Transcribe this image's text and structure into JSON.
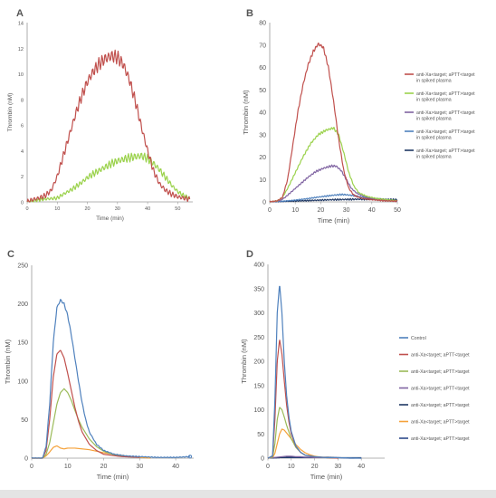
{
  "chart_data": [
    {
      "panel": "A",
      "type": "line",
      "xlabel": "Time (min)",
      "ylabel": "Thrombin (nM)",
      "xlim": [
        0,
        55
      ],
      "ylim": [
        0,
        14
      ],
      "xticks": [
        0,
        10,
        20,
        30,
        40,
        50
      ],
      "yticks": [
        0,
        2,
        4,
        6,
        8,
        10,
        12,
        14
      ],
      "series": [
        {
          "color": "#c0504d",
          "wiggle": 0.55,
          "x": [
            0,
            2,
            4,
            6,
            8,
            10,
            12,
            14,
            16,
            18,
            20,
            22,
            24,
            26,
            28,
            30,
            32,
            34,
            36,
            38,
            40,
            42,
            44,
            46,
            48,
            50,
            52,
            54
          ],
          "y": [
            0,
            0.2,
            0.3,
            0.5,
            0.9,
            2.0,
            3.6,
            5.2,
            6.8,
            8.2,
            9.4,
            10.2,
            10.8,
            11.2,
            11.4,
            11.3,
            10.7,
            9.5,
            7.8,
            5.8,
            4.0,
            2.4,
            1.4,
            0.9,
            0.6,
            0.4,
            0.3,
            0.2
          ]
        },
        {
          "color": "#9bd24c",
          "wiggle": 0.35,
          "x": [
            0,
            5,
            10,
            12,
            15,
            18,
            20,
            22,
            25,
            28,
            30,
            33,
            35,
            38,
            40,
            42,
            44,
            46,
            48,
            50,
            52,
            54
          ],
          "y": [
            0,
            0.2,
            0.3,
            0.6,
            1.0,
            1.5,
            1.9,
            2.2,
            2.6,
            3.0,
            3.2,
            3.4,
            3.5,
            3.6,
            3.4,
            3.0,
            2.5,
            1.9,
            1.3,
            0.8,
            0.5,
            0.3
          ]
        }
      ]
    },
    {
      "panel": "B",
      "type": "line",
      "xlabel": "Time (min)",
      "ylabel": "Thrombin (nM)",
      "xlim": [
        0,
        50
      ],
      "ylim": [
        0,
        80
      ],
      "xticks": [
        0,
        10,
        20,
        30,
        40,
        50
      ],
      "yticks": [
        0,
        10,
        20,
        30,
        40,
        50,
        60,
        70,
        80
      ],
      "legend": "right",
      "series": [
        {
          "name": "anti-Xa<target; aPTT<target in spiked plasma",
          "color": "#c0504d",
          "wiggle": 0.8,
          "x": [
            0,
            3,
            5,
            7,
            9,
            11,
            13,
            15,
            17,
            19,
            21,
            23,
            25,
            27,
            29,
            31,
            33,
            35,
            37,
            40,
            45,
            50
          ],
          "y": [
            0,
            0.5,
            2,
            10,
            25,
            40,
            52,
            61,
            67,
            70.5,
            69,
            60,
            45,
            28,
            14,
            6,
            3,
            2,
            1.5,
            1,
            0.5,
            0.3
          ]
        },
        {
          "name": "anti-Xa<target; aPTT>target in spiked plasma",
          "color": "#9bd24c",
          "wiggle": 0.6,
          "x": [
            0,
            3,
            5,
            7,
            10,
            13,
            16,
            19,
            22,
            25,
            27,
            29,
            31,
            33,
            35,
            38,
            42,
            46,
            50
          ],
          "y": [
            0,
            0.5,
            2,
            6,
            13,
            20,
            26,
            30,
            32,
            33,
            30,
            22,
            13,
            7,
            4,
            2.5,
            1.5,
            1,
            0.5
          ]
        },
        {
          "name": "anti-Xa>target; aPTT<target in spiked plasma",
          "color": "#8064a2",
          "wiggle": 0.5,
          "x": [
            0,
            4,
            6,
            9,
            12,
            15,
            18,
            21,
            24,
            26,
            28,
            30,
            32,
            34,
            37,
            40,
            45,
            50
          ],
          "y": [
            0,
            0.5,
            2,
            5,
            8,
            11,
            13.5,
            15,
            16,
            16,
            14,
            10,
            6,
            4,
            2.5,
            1.5,
            1,
            0.5
          ]
        },
        {
          "name": "anti-Xa>target; aPTT>target in spiked plasma",
          "color": "#4f81bd",
          "wiggle": 0.35,
          "x": [
            0,
            5,
            10,
            15,
            20,
            25,
            28,
            30,
            33,
            36,
            40,
            45,
            50
          ],
          "y": [
            0,
            0.3,
            0.8,
            1.5,
            2.3,
            3.0,
            3.3,
            3.2,
            2.8,
            2.2,
            1.5,
            0.8,
            0.4
          ]
        },
        {
          "name": "anti-Xa>target; aPTT>target in spiked plasma",
          "color": "#1f3864",
          "wiggle": 0.4,
          "x": [
            0,
            5,
            10,
            15,
            20,
            25,
            30,
            35,
            40,
            45,
            50
          ],
          "y": [
            0,
            0.2,
            0.4,
            0.6,
            0.8,
            1.0,
            1.1,
            1.2,
            1.2,
            1.1,
            1.0
          ]
        }
      ]
    },
    {
      "panel": "C",
      "type": "line",
      "xlabel": "Time (min)",
      "ylabel": "Thrombin (nM)",
      "xlim": [
        0,
        45
      ],
      "ylim": [
        0,
        250
      ],
      "xticks": [
        0,
        10,
        20,
        30,
        40
      ],
      "yticks": [
        0,
        50,
        100,
        150,
        200,
        250
      ],
      "series": [
        {
          "color": "#4f81bd",
          "wiggle": 1.5,
          "x": [
            0,
            3,
            4,
            5,
            6,
            7,
            8,
            9,
            10,
            11,
            12,
            13,
            14,
            15,
            16,
            18,
            20,
            23,
            26,
            30,
            35,
            40,
            44
          ],
          "y": [
            0,
            0,
            15,
            70,
            150,
            195,
            205,
            200,
            185,
            160,
            130,
            100,
            72,
            50,
            34,
            18,
            10,
            5,
            3,
            2,
            1,
            1,
            2
          ]
        },
        {
          "color": "#c0504d",
          "wiggle": 0,
          "x": [
            0,
            3,
            4,
            5,
            6,
            7,
            8,
            9,
            10,
            11,
            12,
            13,
            14,
            16,
            18,
            20,
            25,
            30
          ],
          "y": [
            0,
            0,
            10,
            50,
            105,
            135,
            140,
            130,
            110,
            88,
            66,
            48,
            34,
            18,
            10,
            5,
            2,
            1
          ]
        },
        {
          "color": "#9bbb59",
          "wiggle": 0,
          "x": [
            0,
            3,
            4,
            5,
            6,
            7,
            8,
            9,
            10,
            11,
            12,
            13,
            14,
            16,
            18,
            20,
            23,
            26,
            30
          ],
          "y": [
            0,
            0,
            5,
            20,
            45,
            70,
            85,
            90,
            85,
            75,
            62,
            50,
            40,
            25,
            15,
            9,
            4,
            2,
            1
          ]
        },
        {
          "color": "#f5a23a",
          "wiggle": 0,
          "x": [
            0,
            3,
            4,
            5,
            6,
            7,
            8,
            9,
            10,
            12,
            14,
            16,
            18,
            20,
            23,
            26,
            30,
            33
          ],
          "y": [
            0,
            0,
            3,
            8,
            14,
            16,
            13,
            12,
            13,
            13,
            12,
            11,
            9,
            7,
            5,
            3,
            1,
            0
          ]
        }
      ]
    },
    {
      "panel": "D",
      "type": "line",
      "xlabel": "Time (min)",
      "ylabel": "Thrombin (nM)",
      "xlim": [
        0,
        50
      ],
      "ylim": [
        0,
        400
      ],
      "xticks": [
        0,
        10,
        20,
        30,
        40
      ],
      "yticks": [
        0,
        50,
        100,
        150,
        200,
        250,
        300,
        350,
        400
      ],
      "legend": "right",
      "series": [
        {
          "name": "Control",
          "color": "#4f81bd",
          "wiggle": 0,
          "x": [
            0,
            2,
            3,
            4,
            5,
            6,
            7,
            8,
            9,
            10,
            12,
            14,
            16,
            20,
            25,
            30,
            40
          ],
          "y": [
            0,
            5,
            120,
            300,
            360,
            300,
            200,
            130,
            85,
            55,
            25,
            12,
            6,
            3,
            1,
            1,
            0
          ]
        },
        {
          "name": "anti-Xa<target; aPTT<target",
          "color": "#c0504d",
          "wiggle": 0,
          "x": [
            0,
            2,
            3,
            4,
            5,
            6,
            7,
            8,
            9,
            10,
            12,
            14,
            16,
            20,
            25,
            30
          ],
          "y": [
            0,
            4,
            80,
            200,
            245,
            215,
            160,
            110,
            75,
            50,
            24,
            12,
            6,
            3,
            1,
            0
          ]
        },
        {
          "name": "anti-Xa<target; aPTT>target",
          "color": "#9bbb59",
          "wiggle": 0,
          "x": [
            0,
            2,
            3,
            4,
            5,
            6,
            7,
            8,
            10,
            12,
            14,
            16,
            20,
            25,
            30
          ],
          "y": [
            0,
            2,
            30,
            80,
            105,
            100,
            85,
            68,
            40,
            22,
            12,
            6,
            3,
            1,
            0
          ]
        },
        {
          "name": "anti-Xa>target; aPTT<target",
          "color": "#8064a2",
          "wiggle": 0,
          "x": [
            0,
            2,
            4,
            6,
            8,
            10,
            12,
            14,
            16,
            18,
            20,
            25,
            30
          ],
          "y": [
            0,
            1,
            2,
            3,
            4,
            4,
            3,
            3,
            2,
            2,
            1,
            1,
            0
          ]
        },
        {
          "name": "anti-Xa>target; aPTT>target",
          "color": "#1f3864",
          "wiggle": 0,
          "x": [
            0,
            5,
            10,
            15,
            20,
            25,
            30,
            35,
            40
          ],
          "y": [
            0,
            1,
            2,
            2,
            2,
            2,
            1,
            1,
            1
          ]
        },
        {
          "name": "anti-Xa<target; aPTT>target",
          "color": "#f5a23a",
          "wiggle": 0,
          "x": [
            0,
            2,
            3,
            4,
            5,
            6,
            7,
            8,
            10,
            12,
            14,
            16,
            18,
            20,
            23,
            26,
            30
          ],
          "y": [
            0,
            1,
            10,
            30,
            50,
            60,
            58,
            52,
            40,
            28,
            18,
            11,
            7,
            4,
            2,
            1,
            0
          ]
        },
        {
          "name": "anti-Xa>target; aPTT>target",
          "color": "#2e4a8a",
          "wiggle": 0,
          "x": [
            0,
            5,
            10,
            15,
            20,
            25,
            30,
            35,
            40
          ],
          "y": [
            0,
            1,
            1,
            1,
            1,
            1,
            1,
            0,
            0
          ]
        }
      ]
    }
  ]
}
